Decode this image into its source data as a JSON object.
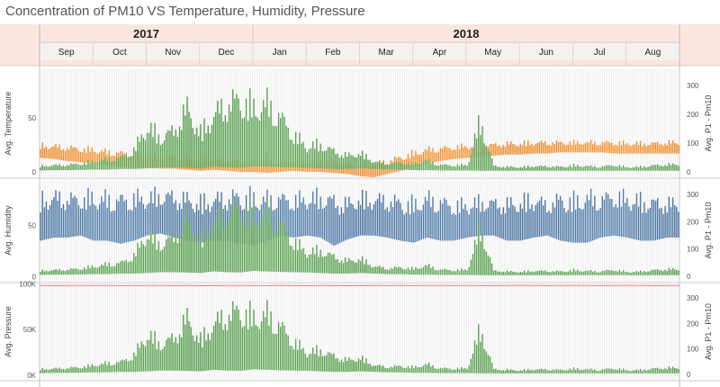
{
  "title": "Concentration of PM10 VS Temperature, Humidity, Pressure",
  "colors": {
    "header_bg": "#fbe6e0",
    "pm10": "#59a14f",
    "temperature": "#f28e2b",
    "humidity": "#4e79a7",
    "pressure": "#e15759",
    "grid": "#d6d6d6"
  },
  "chart_data": [
    {
      "type": "bar",
      "x_axis": {
        "years": [
          {
            "label": "2017",
            "months": [
              "Sep",
              "Oct",
              "Nov",
              "Dec"
            ]
          },
          {
            "label": "2018",
            "months": [
              "Jan",
              "Feb",
              "Mar",
              "Apr",
              "May",
              "Jun",
              "Jul",
              "Aug"
            ]
          }
        ],
        "months": [
          "Sep",
          "Oct",
          "Nov",
          "Dec",
          "Jan",
          "Feb",
          "Mar",
          "Apr",
          "May",
          "Jun",
          "Jul",
          "Aug"
        ]
      },
      "right_axis": {
        "label": "Avg. P1 - Pm10",
        "ylim": [
          0,
          350
        ],
        "ticks": [
          0,
          100,
          200,
          300
        ]
      },
      "panels": [
        {
          "left_label": "Avg. Temperature",
          "left_ylim": [
            -5,
            95
          ],
          "left_ticks": [
            {
              "v": 0,
              "label": "0"
            },
            {
              "v": 50,
              "label": "50"
            }
          ],
          "series": [
            {
              "measure": "Temperature",
              "axis": "left",
              "weekly_low": [
                13,
                12,
                10,
                9,
                8,
                6,
                5,
                4,
                4,
                3,
                3,
                2,
                1,
                2,
                1,
                0,
                0,
                -1,
                0,
                1,
                0,
                0,
                -1,
                -2,
                -4,
                -5,
                -2,
                1,
                4,
                8,
                10,
                12,
                13,
                14,
                15,
                16,
                16,
                17,
                17,
                18,
                18,
                18,
                18,
                17,
                17,
                17,
                17,
                17
              ],
              "weekly_high": [
                28,
                27,
                26,
                25,
                24,
                22,
                21,
                20,
                19,
                18,
                17,
                16,
                15,
                15,
                13,
                14,
                12,
                13,
                12,
                13,
                12,
                14,
                12,
                11,
                9,
                11,
                13,
                17,
                21,
                24,
                25,
                26,
                27,
                28,
                28,
                29,
                29,
                30,
                30,
                30,
                30,
                30,
                30,
                30,
                29,
                29,
                29,
                30
              ]
            },
            {
              "measure": "PM10",
              "axis": "right",
              "weekly_low": [
                5,
                6,
                6,
                7,
                8,
                8,
                10,
                10,
                12,
                15,
                15,
                14,
                12,
                18,
                15,
                14,
                20,
                18,
                16,
                15,
                14,
                12,
                10,
                10,
                12,
                10,
                8,
                8,
                6,
                6,
                5,
                5,
                5,
                4,
                4,
                4,
                4,
                4,
                4,
                4,
                4,
                4,
                4,
                4,
                4,
                4,
                4,
                4
              ],
              "weekly_high": [
                25,
                28,
                30,
                35,
                45,
                55,
                60,
                95,
                200,
                150,
                180,
                280,
                170,
                250,
                300,
                320,
                280,
                300,
                240,
                160,
                110,
                120,
                90,
                70,
                80,
                45,
                35,
                40,
                35,
                50,
                30,
                28,
                30,
                230,
                25,
                22,
                20,
                25,
                24,
                22,
                28,
                25,
                22,
                30,
                20,
                22,
                28,
                32
              ]
            }
          ]
        },
        {
          "left_label": "Avg. Humidity",
          "left_ylim": [
            -5,
            95
          ],
          "left_ticks": [
            {
              "v": 0,
              "label": "0"
            },
            {
              "v": 50,
              "label": "50"
            }
          ],
          "series": [
            {
              "measure": "Humidity",
              "axis": "left",
              "weekly_low": [
                35,
                38,
                38,
                40,
                35,
                35,
                32,
                35,
                40,
                42,
                38,
                35,
                33,
                35,
                35,
                32,
                30,
                35,
                40,
                38,
                40,
                38,
                30,
                36,
                40,
                40,
                38,
                35,
                33,
                38,
                35,
                35,
                38,
                40,
                40,
                35,
                35,
                38,
                40,
                35,
                33,
                33,
                38,
                40,
                38,
                35,
                35,
                38
              ],
              "weekly_high": [
                85,
                88,
                86,
                85,
                88,
                86,
                86,
                87,
                86,
                90,
                88,
                86,
                82,
                86,
                88,
                90,
                88,
                86,
                86,
                84,
                86,
                88,
                85,
                80,
                86,
                85,
                84,
                82,
                80,
                86,
                83,
                78,
                78,
                82,
                80,
                80,
                82,
                85,
                78,
                86,
                84,
                88,
                86,
                88,
                86,
                84,
                82,
                80
              ]
            },
            {
              "measure": "PM10",
              "axis": "right",
              "weekly_low": [
                5,
                6,
                6,
                7,
                8,
                8,
                10,
                10,
                12,
                15,
                15,
                14,
                12,
                18,
                15,
                14,
                20,
                18,
                16,
                15,
                14,
                12,
                10,
                10,
                12,
                10,
                8,
                8,
                6,
                6,
                5,
                5,
                5,
                4,
                4,
                4,
                4,
                4,
                4,
                4,
                4,
                4,
                4,
                4,
                4,
                4,
                4,
                4
              ],
              "weekly_high": [
                25,
                28,
                30,
                35,
                45,
                55,
                60,
                95,
                200,
                150,
                180,
                280,
                170,
                250,
                300,
                320,
                280,
                300,
                240,
                160,
                110,
                120,
                90,
                70,
                80,
                45,
                35,
                40,
                35,
                50,
                30,
                28,
                30,
                230,
                25,
                22,
                20,
                25,
                24,
                22,
                28,
                25,
                22,
                30,
                20,
                22,
                28,
                32
              ]
            }
          ]
        },
        {
          "left_label": "Avg. Pressure",
          "left_ylim": [
            -5000,
            100500
          ],
          "left_ticks": [
            {
              "v": 0,
              "label": "0K"
            },
            {
              "v": 50000,
              "label": "50K"
            },
            {
              "v": 100000,
              "label": "100K"
            }
          ],
          "series": [
            {
              "measure": "Pressure",
              "axis": "left",
              "weekly_low": [
                97800,
                97700,
                97800,
                97900,
                97700,
                97800,
                97600,
                97700,
                97800,
                97900,
                97700,
                97800,
                97600,
                97700,
                97800,
                97900,
                97700,
                97600,
                97800,
                97700,
                97500,
                97800,
                97700,
                97600,
                97700,
                97800,
                97700,
                97800,
                97600,
                97900,
                97800,
                97700,
                97800,
                97600,
                97700,
                97800,
                97900,
                97800,
                97700,
                97800,
                97900,
                97800,
                97700,
                97800,
                97900,
                97800,
                97700,
                97800
              ],
              "weekly_high": [
                98800,
                98700,
                98800,
                98900,
                98700,
                98800,
                98600,
                98700,
                98800,
                98900,
                98700,
                98800,
                98600,
                98700,
                98800,
                98900,
                98700,
                98600,
                98800,
                98700,
                98500,
                98800,
                98700,
                98600,
                98700,
                98800,
                98700,
                98800,
                98600,
                98900,
                98800,
                98700,
                98800,
                98600,
                98700,
                98800,
                98900,
                98800,
                98700,
                98800,
                98900,
                98800,
                98700,
                98800,
                98900,
                98800,
                98700,
                98800
              ]
            },
            {
              "measure": "PM10",
              "axis": "right",
              "weekly_low": [
                5,
                6,
                6,
                7,
                8,
                8,
                10,
                10,
                12,
                15,
                15,
                14,
                12,
                18,
                15,
                14,
                20,
                18,
                16,
                15,
                14,
                12,
                10,
                10,
                12,
                10,
                8,
                8,
                6,
                6,
                5,
                5,
                5,
                4,
                4,
                4,
                4,
                4,
                4,
                4,
                4,
                4,
                4,
                4,
                4,
                4,
                4,
                4
              ],
              "weekly_high": [
                25,
                28,
                30,
                35,
                45,
                55,
                60,
                95,
                200,
                150,
                180,
                280,
                170,
                250,
                300,
                320,
                280,
                300,
                240,
                160,
                110,
                120,
                90,
                70,
                80,
                45,
                35,
                40,
                35,
                50,
                30,
                28,
                30,
                230,
                25,
                22,
                20,
                25,
                24,
                22,
                28,
                25,
                22,
                30,
                20,
                22,
                28,
                32
              ]
            }
          ]
        }
      ]
    }
  ]
}
